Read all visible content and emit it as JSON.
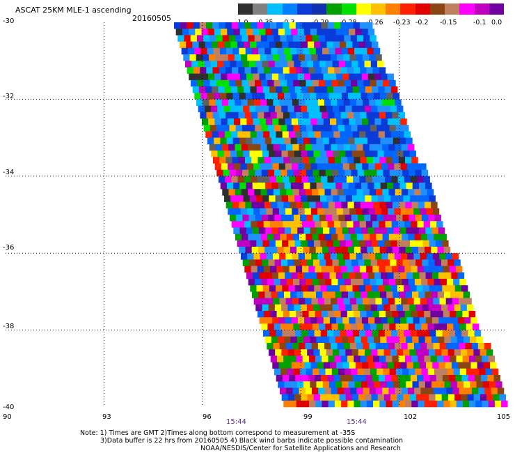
{
  "header": {
    "title": "ASCAT 25KM MLE-1 ascending",
    "date": "20160505"
  },
  "colorbar": {
    "colors": [
      "#2f2f2f",
      "#808080",
      "#00bfff",
      "#0080ff",
      "#0a3ad8",
      "#1030b0",
      "#00a000",
      "#00e000",
      "#ffff00",
      "#ffc000",
      "#ff8000",
      "#ff2000",
      "#e00000",
      "#8b4513",
      "#c08060",
      "#ff00ff",
      "#c000c0",
      "#7000a0"
    ],
    "labels": [
      "-1.0",
      "-0.35",
      "-0.3",
      "-0.29",
      "-0.28",
      "-0.26",
      "-0.23",
      "-0.2",
      "-0.15",
      "-0.1",
      "0.0"
    ]
  },
  "axes": {
    "lat_labels": [
      "-30",
      "-32",
      "-34",
      "-36",
      "-38",
      "-40"
    ],
    "lon_labels": [
      "90",
      "93",
      "96",
      "99",
      "102",
      "105"
    ],
    "lat_range": [
      -40,
      -30
    ],
    "lon_range": [
      90,
      105
    ]
  },
  "times": [
    "15:44",
    "15:44"
  ],
  "notes": [
    "Note: 1) Times are GMT 2)Times along bottom correspond to measurement at -35S",
    "3)Data buffer is 22 hrs from 20160505 4) Black wind barbs indicate possible contamination",
    "NOAA/NESDIS/Center for Satellite Applications and Research"
  ]
}
